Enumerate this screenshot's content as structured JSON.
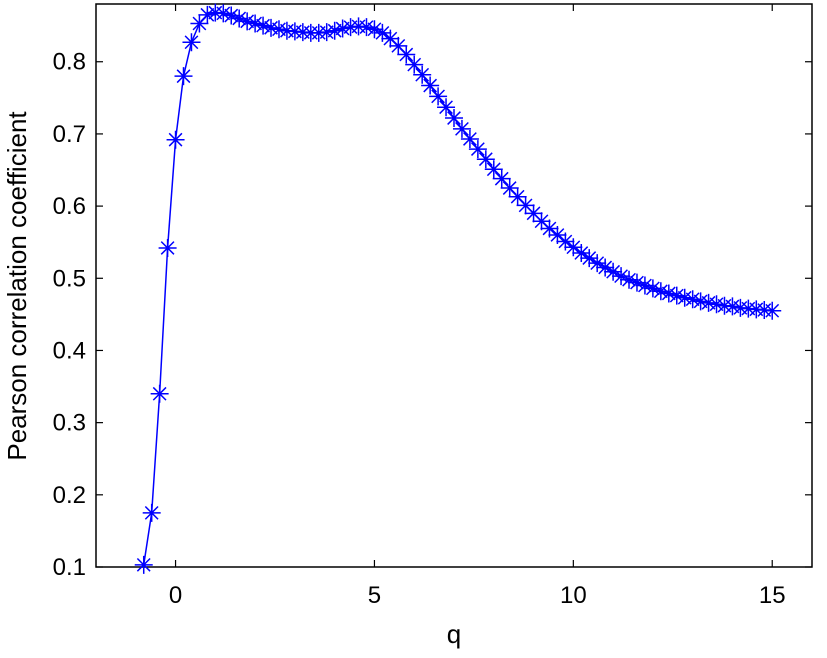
{
  "chart_data": {
    "type": "line",
    "title": "",
    "xlabel": "q",
    "ylabel": "Pearson correlation coefficient",
    "xlim": [
      -2,
      16
    ],
    "ylim": [
      0.1,
      0.88
    ],
    "xticks": [
      0,
      5,
      10,
      15
    ],
    "yticks": [
      0.1,
      0.2,
      0.3,
      0.4,
      0.5,
      0.6,
      0.7,
      0.8
    ],
    "grid": false,
    "legend": "none",
    "series": [
      {
        "color": "#0000ff",
        "marker": "asterisk",
        "x": [
          -0.8,
          -0.6,
          -0.4,
          -0.2,
          0,
          0.2,
          0.4,
          0.6,
          0.8,
          1,
          1.2,
          1.4,
          1.6,
          1.8,
          2,
          2.2,
          2.4,
          2.6,
          2.8,
          3,
          3.2,
          3.4,
          3.6,
          3.8,
          4,
          4.2,
          4.4,
          4.6,
          4.8,
          5,
          5.2,
          5.4,
          5.6,
          5.8,
          6,
          6.2,
          6.4,
          6.6,
          6.8,
          7,
          7.2,
          7.4,
          7.6,
          7.8,
          8,
          8.2,
          8.4,
          8.6,
          8.8,
          9,
          9.2,
          9.4,
          9.6,
          9.8,
          10,
          10.2,
          10.4,
          10.6,
          10.8,
          11,
          11.2,
          11.4,
          11.6,
          11.8,
          12,
          12.2,
          12.4,
          12.6,
          12.8,
          13,
          13.2,
          13.4,
          13.6,
          13.8,
          14,
          14.2,
          14.4,
          14.6,
          14.8,
          15
        ],
        "y": [
          0.103,
          0.175,
          0.34,
          0.542,
          0.692,
          0.78,
          0.827,
          0.853,
          0.865,
          0.868,
          0.867,
          0.864,
          0.86,
          0.856,
          0.853,
          0.85,
          0.847,
          0.845,
          0.843,
          0.842,
          0.841,
          0.84,
          0.84,
          0.841,
          0.843,
          0.846,
          0.848,
          0.849,
          0.848,
          0.845,
          0.84,
          0.832,
          0.822,
          0.81,
          0.796,
          0.782,
          0.767,
          0.752,
          0.737,
          0.722,
          0.707,
          0.693,
          0.679,
          0.665,
          0.651,
          0.638,
          0.625,
          0.613,
          0.601,
          0.59,
          0.579,
          0.569,
          0.56,
          0.551,
          0.543,
          0.535,
          0.528,
          0.521,
          0.515,
          0.509,
          0.503,
          0.498,
          0.494,
          0.49,
          0.486,
          0.482,
          0.479,
          0.476,
          0.473,
          0.471,
          0.468,
          0.466,
          0.464,
          0.462,
          0.461,
          0.459,
          0.458,
          0.457,
          0.456,
          0.455
        ]
      }
    ]
  }
}
